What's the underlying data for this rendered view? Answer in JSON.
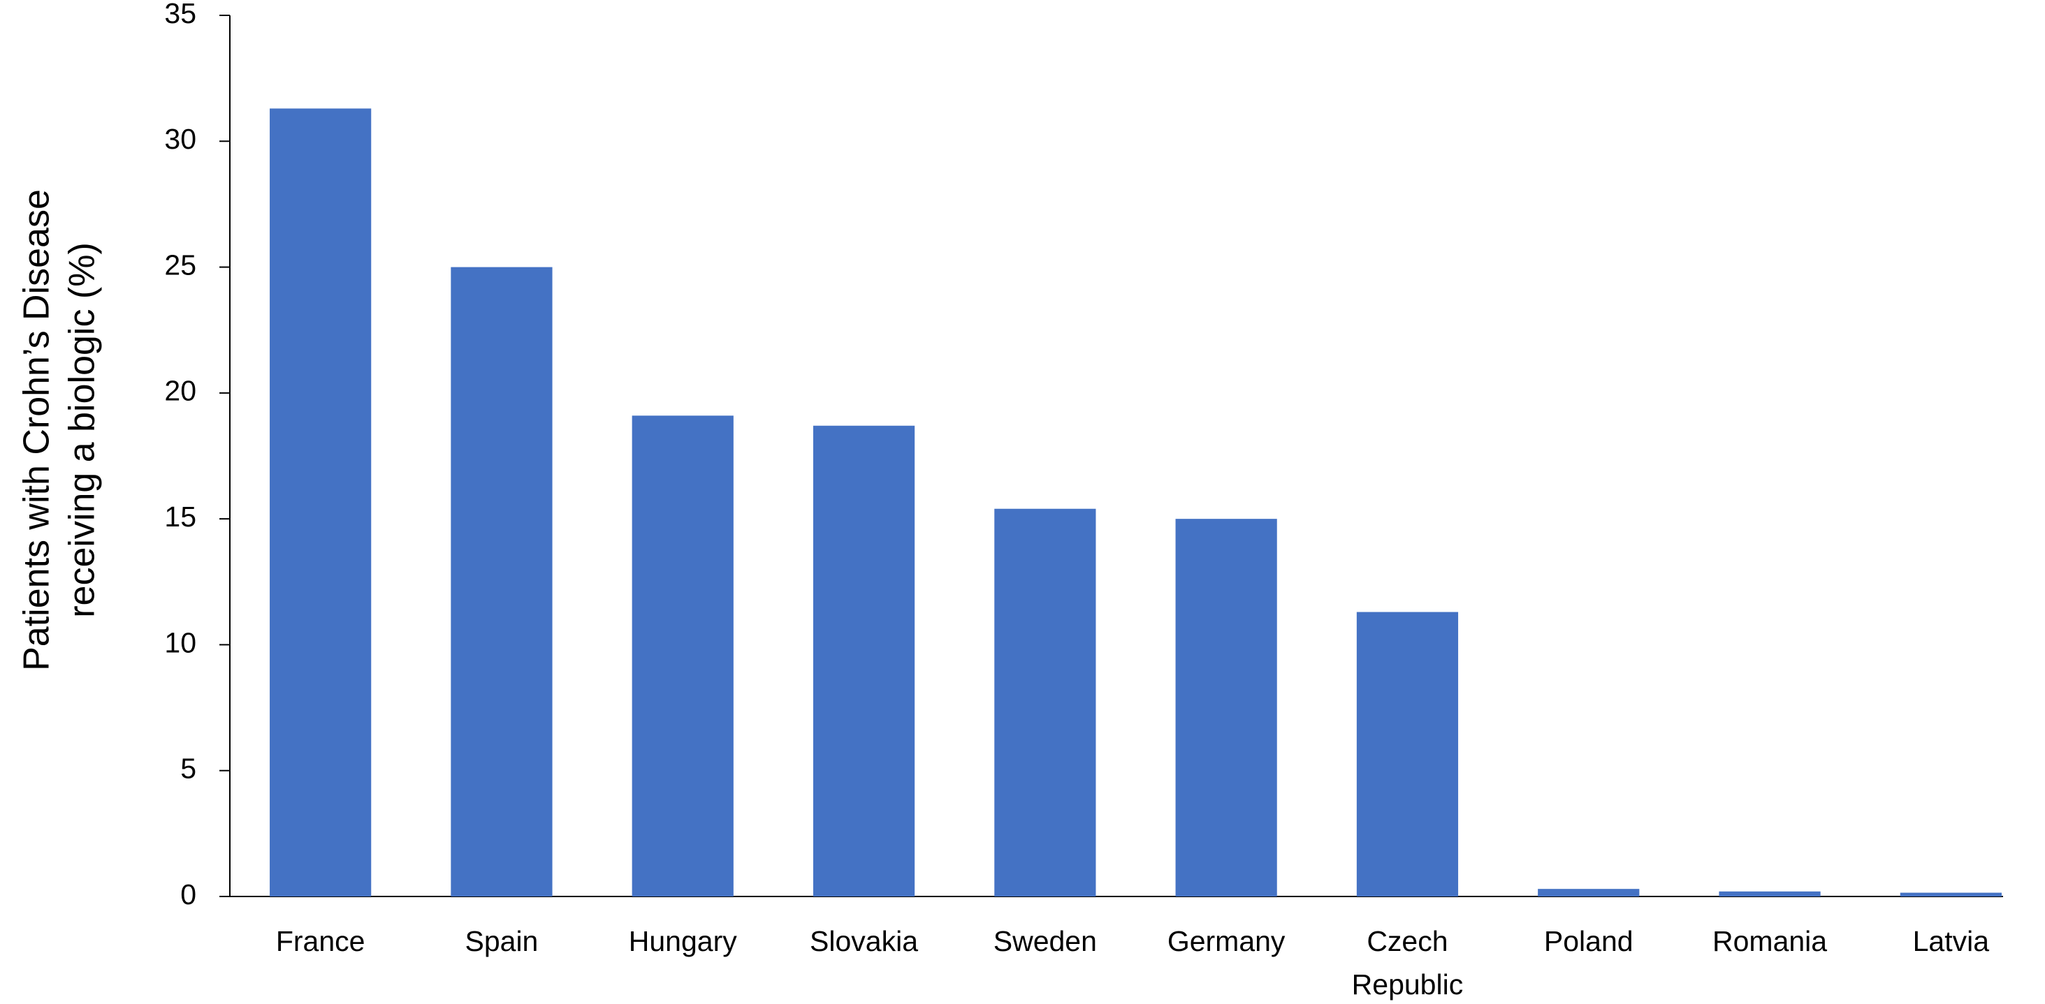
{
  "chart_data": {
    "type": "bar",
    "y_label": [
      "Patients with Crohn’s Disease",
      "receiving a biologic (%)"
    ],
    "categories": [
      "France",
      "Spain",
      "Hungary",
      "Slovakia",
      "Sweden",
      "Germany",
      "Czech Republic",
      "Poland",
      "Romania",
      "Latvia"
    ],
    "values": [
      31.3,
      25.0,
      19.1,
      18.7,
      15.4,
      15.0,
      11.3,
      0.3,
      0.2,
      0.15
    ],
    "color": "#4472c4",
    "ylim": [
      0,
      35
    ],
    "yticks": [
      0,
      5,
      10,
      15,
      20,
      25,
      30,
      35
    ],
    "grid": false
  }
}
